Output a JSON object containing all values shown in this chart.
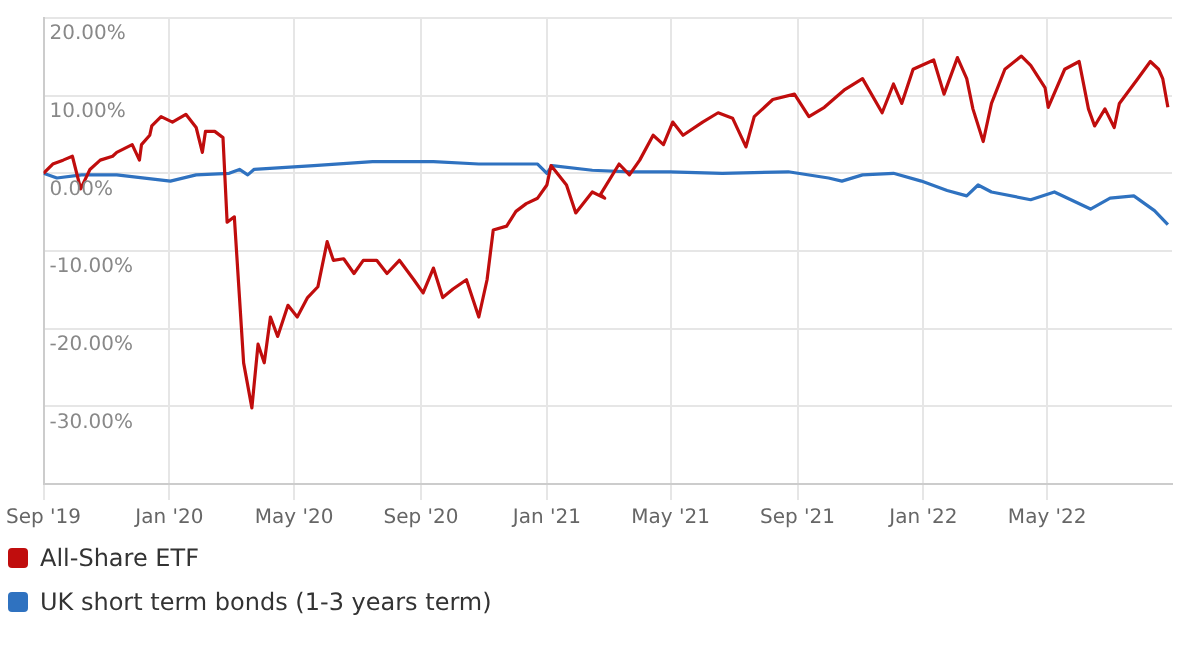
{
  "chart_data": {
    "type": "line",
    "x": [
      "2019-09-01",
      "2019-09-10",
      "2019-09-20",
      "2019-09-29",
      "2019-10-07",
      "2019-10-16",
      "2019-10-26",
      "2019-11-07",
      "2019-11-11",
      "2019-11-26",
      "2019-12-03",
      "2019-12-05",
      "2019-12-13",
      "2019-12-15",
      "2019-12-24",
      "2020-01-04",
      "2020-01-17",
      "2020-01-27",
      "2020-02-02",
      "2020-02-05",
      "2020-02-14",
      "2020-02-22",
      "2020-02-26",
      "2020-03-04",
      "2020-03-09",
      "2020-03-13",
      "2020-03-21",
      "2020-03-27",
      "2020-04-02",
      "2020-04-08",
      "2020-04-15",
      "2020-04-25",
      "2020-05-04",
      "2020-05-14",
      "2020-05-24",
      "2020-06-02",
      "2020-06-08",
      "2020-06-18",
      "2020-06-28",
      "2020-07-07",
      "2020-07-20",
      "2020-07-30",
      "2020-08-11",
      "2020-08-25",
      "2020-09-03",
      "2020-09-13",
      "2020-09-22",
      "2020-10-02",
      "2020-10-15",
      "2020-10-27",
      "2020-11-04",
      "2020-11-10",
      "2020-11-23",
      "2020-12-02",
      "2020-12-12",
      "2020-12-23",
      "2021-01-01",
      "2021-01-05",
      "2021-01-20",
      "2021-01-29",
      "2021-02-14",
      "2021-02-26",
      "2021-02-22",
      "2021-03-12",
      "2021-03-22",
      "2021-04-01",
      "2021-04-14",
      "2021-04-24",
      "2021-05-03",
      "2021-05-13",
      "2021-06-01",
      "2021-06-16",
      "2021-06-30",
      "2021-07-13",
      "2021-07-21",
      "2021-08-08",
      "2021-08-29",
      "2021-09-12",
      "2021-09-27",
      "2021-10-16",
      "2021-11-03",
      "2021-11-22",
      "2021-12-03",
      "2021-12-11",
      "2021-12-22",
      "2022-01-11",
      "2022-01-21",
      "2022-02-03",
      "2022-02-12",
      "2022-02-18",
      "2022-02-28",
      "2022-03-08",
      "2022-03-21",
      "2022-04-06",
      "2022-04-15",
      "2022-04-29",
      "2022-05-02",
      "2022-05-18",
      "2022-06-01",
      "2022-06-10",
      "2022-06-16",
      "2022-06-26",
      "2022-07-05",
      "2022-07-10",
      "2022-07-28",
      "2022-08-09",
      "2022-08-17",
      "2022-08-21",
      "2022-08-26"
    ],
    "series": [
      {
        "name": "All-Share ETF",
        "color": "#c00d0d",
        "values": [
          0,
          1.2,
          1.7,
          2.2,
          -2,
          0.5,
          1.7,
          2.2,
          2.7,
          3.7,
          1.7,
          3.7,
          4.9,
          6.1,
          7.3,
          6.6,
          7.6,
          5.9,
          2.7,
          5.4,
          5.4,
          4.6,
          -6.3,
          -5.6,
          -16,
          -24.4,
          -30.2,
          -22,
          -24.4,
          -18.5,
          -21,
          -17,
          -18.5,
          -16,
          -14.6,
          -8.8,
          -11.2,
          -11,
          -12.9,
          -11.2,
          -11.2,
          -12.9,
          -11.2,
          -13.7,
          -15.4,
          -12.2,
          -16,
          -14.9,
          -13.7,
          -18.5,
          -13.7,
          -7.3,
          -6.8,
          -4.9,
          -3.9,
          -3.2,
          -1.5,
          1,
          -1.5,
          -5.1,
          -2.4,
          -3.2,
          -2.7,
          1.2,
          -0.2,
          1.7,
          4.9,
          3.7,
          6.6,
          4.9,
          6.6,
          7.8,
          7.1,
          3.4,
          7.3,
          9.5,
          10.2,
          7.3,
          8.5,
          10.7,
          12.2,
          7.8,
          11.5,
          9,
          13.4,
          14.6,
          10.2,
          14.9,
          12.2,
          8.3,
          4.1,
          9,
          13.4,
          15.1,
          13.9,
          11,
          8.5,
          13.4,
          14.4,
          8.3,
          6.1,
          8.3,
          5.9,
          9,
          12.2,
          14.4,
          13.4,
          12.2,
          8.5
        ]
      },
      {
        "name": "UK short term bonds (1-3 years term)",
        "color": "#2f72c0",
        "x": [
          "2019-09-01",
          "2019-09-14",
          "2019-10-08",
          "2019-11-11",
          "2020-01-02",
          "2020-01-27",
          "2020-02-28",
          "2020-03-09",
          "2020-03-17",
          "2020-03-23",
          "2020-05-20",
          "2020-07-16",
          "2020-09-13",
          "2020-10-27",
          "2020-12-23",
          "2021-01-01",
          "2021-01-06",
          "2021-02-14",
          "2021-03-22",
          "2021-04-30",
          "2021-06-20",
          "2021-08-23",
          "2021-10-01",
          "2021-10-14",
          "2021-11-03",
          "2021-12-03",
          "2021-12-30",
          "2022-01-24",
          "2022-02-12",
          "2022-02-23",
          "2022-03-08",
          "2022-04-15",
          "2022-05-08",
          "2022-06-12",
          "2022-07-01",
          "2022-07-24",
          "2022-08-13",
          "2022-08-26"
        ],
        "values": [
          0,
          -0.6,
          -0.2,
          -0.2,
          -1,
          -0.2,
          0,
          0.5,
          -0.2,
          0.5,
          1,
          1.5,
          1.5,
          1.2,
          1.2,
          0,
          1,
          0.4,
          0.2,
          0.2,
          0,
          0.2,
          -0.6,
          -1,
          -0.2,
          0,
          -1,
          -2.2,
          -2.9,
          -1.5,
          -2.4,
          -3.4,
          -2.4,
          -4.6,
          -3.2,
          -2.9,
          -4.8,
          -6.6
        ]
      }
    ],
    "xlim": [
      "2019-09-01",
      "2022-08-30"
    ],
    "xticks": [
      {
        "value": "2019-09-01",
        "label": "Sep '19"
      },
      {
        "value": "2020-01-01",
        "label": "Jan '20"
      },
      {
        "value": "2020-05-01",
        "label": "May '20"
      },
      {
        "value": "2020-09-01",
        "label": "Sep '20"
      },
      {
        "value": "2021-01-01",
        "label": "Jan '21"
      },
      {
        "value": "2021-05-01",
        "label": "May '21"
      },
      {
        "value": "2021-09-01",
        "label": "Sep '21"
      },
      {
        "value": "2022-01-01",
        "label": "Jan '22"
      },
      {
        "value": "2022-05-01",
        "label": "May '22"
      }
    ],
    "ylim": [
      -40,
      20
    ],
    "yticks": [
      {
        "value": -30,
        "label": "-30.00%"
      },
      {
        "value": -20,
        "label": "-20.00%"
      },
      {
        "value": -10,
        "label": "-10.00%"
      },
      {
        "value": 0,
        "label": "0.00%"
      },
      {
        "value": 10,
        "label": "10.00%"
      },
      {
        "value": 20,
        "label": "20.00%"
      }
    ],
    "grid": true,
    "legend": "bottom",
    "marker": "none",
    "line_style": "solid"
  }
}
